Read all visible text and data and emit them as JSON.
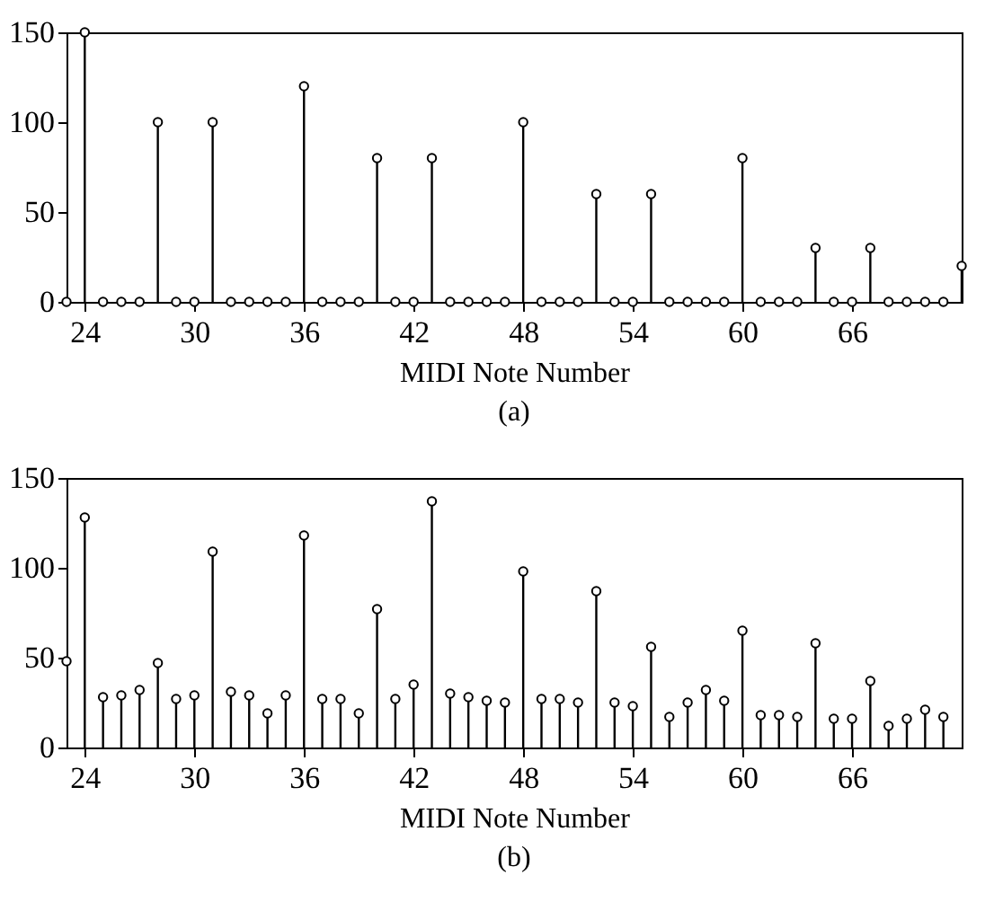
{
  "chart_data": [
    {
      "type": "lollipop",
      "xlabel": "MIDI Note Number",
      "annotations": [
        "(a)"
      ],
      "marker": "circle",
      "color": "#000000",
      "xlim": [
        23,
        72
      ],
      "xticks": [
        24,
        30,
        36,
        42,
        48,
        54,
        60,
        66
      ],
      "ylim": [
        0,
        150
      ],
      "yticks": [
        0,
        50,
        100,
        150
      ],
      "x": [
        23,
        24,
        25,
        26,
        27,
        28,
        29,
        30,
        31,
        32,
        33,
        34,
        35,
        36,
        37,
        38,
        39,
        40,
        41,
        42,
        43,
        44,
        45,
        46,
        47,
        48,
        49,
        50,
        51,
        52,
        53,
        54,
        55,
        56,
        57,
        58,
        59,
        60,
        61,
        62,
        63,
        64,
        65,
        66,
        67,
        68,
        69,
        70,
        71,
        72
      ],
      "values": [
        0,
        150,
        0,
        0,
        0,
        100,
        0,
        0,
        100,
        0,
        0,
        0,
        0,
        120,
        0,
        0,
        0,
        80,
        0,
        0,
        80,
        0,
        0,
        0,
        0,
        100,
        0,
        0,
        0,
        60,
        0,
        0,
        60,
        0,
        0,
        0,
        0,
        80,
        0,
        0,
        0,
        30,
        0,
        0,
        30,
        0,
        0,
        0,
        0,
        20
      ]
    },
    {
      "type": "lollipop",
      "xlabel": "MIDI Note Number",
      "annotations": [
        "(b)"
      ],
      "marker": "circle",
      "color": "#000000",
      "xlim": [
        23,
        72
      ],
      "xticks": [
        24,
        30,
        36,
        42,
        48,
        54,
        60,
        66
      ],
      "ylim": [
        0,
        150
      ],
      "yticks": [
        0,
        50,
        100,
        150
      ],
      "x": [
        23,
        24,
        25,
        26,
        27,
        28,
        29,
        30,
        31,
        32,
        33,
        34,
        35,
        36,
        37,
        38,
        39,
        40,
        41,
        42,
        43,
        44,
        45,
        46,
        47,
        48,
        49,
        50,
        51,
        52,
        53,
        54,
        55,
        56,
        57,
        58,
        59,
        60,
        61,
        62,
        63,
        64,
        65,
        66,
        67,
        68,
        69,
        70,
        71
      ],
      "values": [
        48,
        128,
        28,
        29,
        32,
        47,
        27,
        29,
        109,
        31,
        29,
        19,
        29,
        118,
        27,
        27,
        19,
        77,
        27,
        35,
        137,
        30,
        28,
        26,
        25,
        98,
        27,
        27,
        25,
        87,
        25,
        23,
        56,
        17,
        25,
        32,
        26,
        65,
        18,
        18,
        17,
        58,
        16,
        16,
        37,
        12,
        16,
        21,
        17
      ]
    }
  ]
}
